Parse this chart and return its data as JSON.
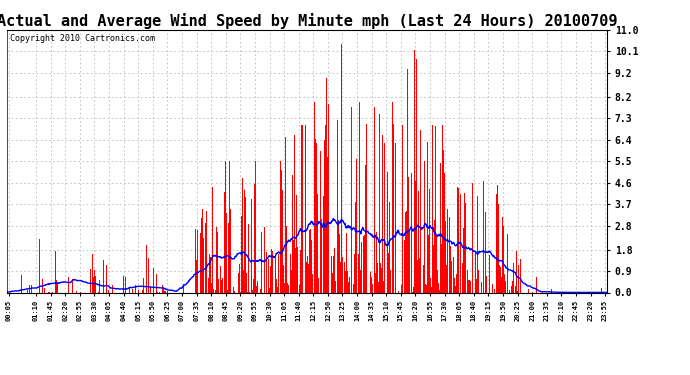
{
  "title": "Actual and Average Wind Speed by Minute mph (Last 24 Hours) 20100709",
  "copyright": "Copyright 2010 Cartronics.com",
  "yticks": [
    0.0,
    0.9,
    1.8,
    2.8,
    3.7,
    4.6,
    5.5,
    6.4,
    7.3,
    8.2,
    9.2,
    10.1,
    11.0
  ],
  "ylim": [
    0.0,
    11.0
  ],
  "bar_color": "#ff0000",
  "line_color": "#0000ff",
  "bg_color": "#ffffff",
  "grid_color": "#bbbbbb",
  "title_fontsize": 11,
  "copyright_fontsize": 6,
  "xtick_labels": [
    "00:05",
    "01:10",
    "01:45",
    "02:20",
    "02:55",
    "03:30",
    "04:05",
    "04:40",
    "05:15",
    "05:50",
    "06:25",
    "07:00",
    "07:35",
    "08:10",
    "08:45",
    "09:20",
    "09:55",
    "10:30",
    "11:05",
    "11:40",
    "12:15",
    "12:50",
    "13:25",
    "14:00",
    "14:35",
    "15:10",
    "15:45",
    "16:20",
    "16:55",
    "17:30",
    "18:05",
    "18:40",
    "19:15",
    "19:50",
    "20:25",
    "21:00",
    "21:35",
    "22:10",
    "22:45",
    "23:20",
    "23:55"
  ]
}
